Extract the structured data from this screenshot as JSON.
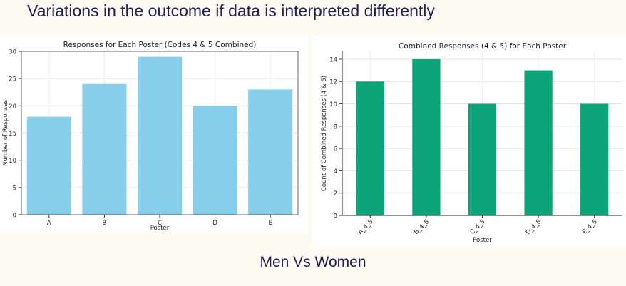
{
  "slide": {
    "title": "Variations in the outcome if data is interpreted differently",
    "footer": "Men Vs Women"
  },
  "chart_data": [
    {
      "type": "bar",
      "title": "Responses for Each Poster (Codes 4 & 5 Combined)",
      "xlabel": "Poster",
      "ylabel": "Number of Responses",
      "categories": [
        "A",
        "B",
        "C",
        "D",
        "E"
      ],
      "values": [
        18,
        24,
        29,
        20,
        23
      ],
      "ylim": [
        0,
        30
      ],
      "yticks": [
        0,
        5,
        10,
        15,
        20,
        25,
        30
      ],
      "color": "#87ceeb",
      "grid": true
    },
    {
      "type": "bar",
      "title": "Combined Responses (4 & 5) for Each Poster",
      "xlabel": "Poster",
      "ylabel": "Count of Combined Responses (4 & 5)",
      "categories": [
        "A_4_5",
        "B_4_5",
        "C_4_5",
        "D_4_5",
        "E_4_5"
      ],
      "values": [
        12,
        14,
        10,
        13,
        10
      ],
      "ylim": [
        0,
        14.7
      ],
      "yticks": [
        0,
        2,
        4,
        6,
        8,
        10,
        12,
        14
      ],
      "color": "#0ea47a",
      "grid": true
    }
  ]
}
